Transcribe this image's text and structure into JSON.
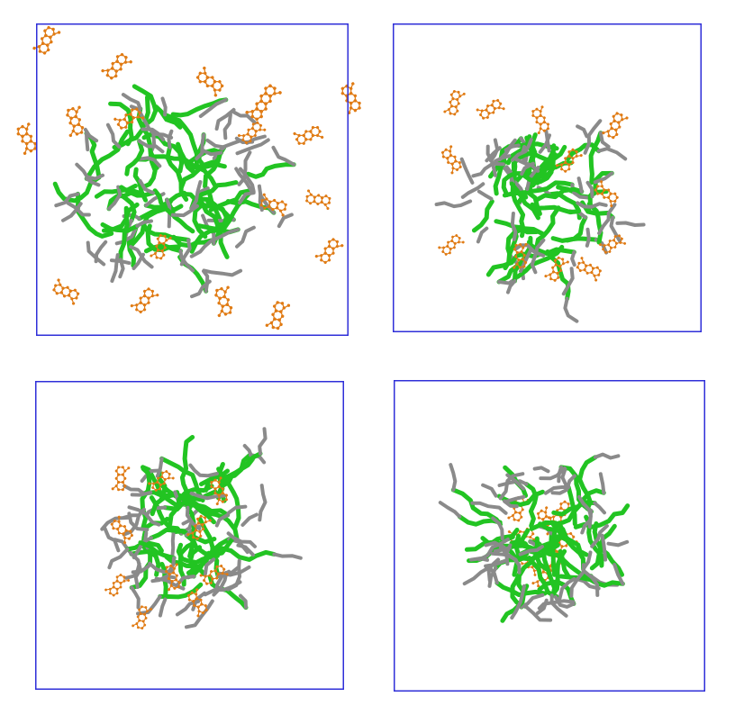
{
  "figure": {
    "background": "#ffffff",
    "box_color": "#2f2fd8",
    "colors": {
      "green_chain": "#22c422",
      "grey_chain": "#8a8a8a",
      "orange_molecule": "#e07b14"
    },
    "panels": [
      {
        "id": "a",
        "content": "dendrimer-with-dispersed-aromatic-molecules"
      },
      {
        "id": "b",
        "content": "dendrimer-with-partially-bound-aromatic-molecules"
      },
      {
        "id": "c",
        "content": "dendrimer-with-surface-bound-aromatic-molecules"
      },
      {
        "id": "d",
        "content": "dendrimer-with-encapsulated-aromatic-molecules"
      }
    ]
  }
}
